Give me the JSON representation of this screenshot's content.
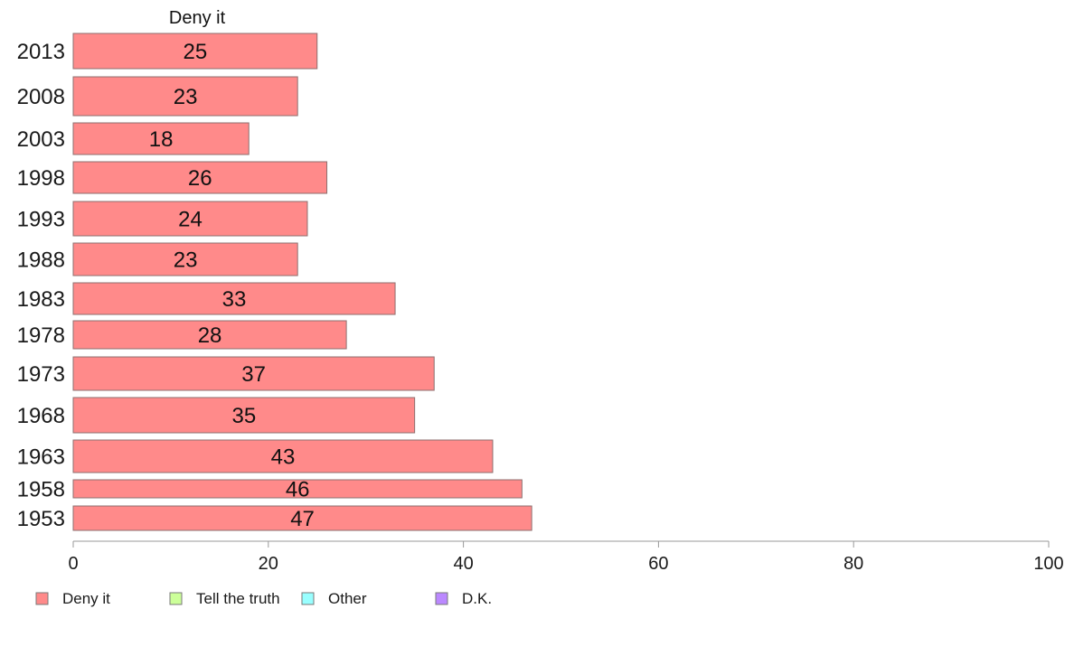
{
  "chart_data": {
    "type": "bar",
    "orientation": "horizontal",
    "column_title": "Deny it",
    "categories": [
      "2013",
      "2008",
      "2003",
      "1998",
      "1993",
      "1988",
      "1983",
      "1978",
      "1973",
      "1968",
      "1963",
      "1958",
      "1953"
    ],
    "series": [
      {
        "name": "Deny it",
        "color": "#ff8a8a",
        "values": [
          25,
          23,
          18,
          26,
          24,
          23,
          33,
          28,
          37,
          35,
          43,
          46,
          47
        ],
        "labels": [
          "25",
          "23",
          "18",
          "26",
          "24",
          "23",
          "33",
          "28",
          "37",
          "35",
          "43",
          "46",
          "47"
        ]
      }
    ],
    "xlim": [
      0,
      100
    ],
    "xticks": [
      "0",
      "20",
      "40",
      "60",
      "80",
      "100"
    ],
    "grid": false,
    "legend": {
      "position": "bottom-left",
      "items": [
        {
          "label": "Deny it",
          "color": "#ff8a8a"
        },
        {
          "label": "Tell the truth",
          "color": "#ccff99"
        },
        {
          "label": "Other",
          "color": "#99ffff"
        },
        {
          "label": "D.K.",
          "color": "#bb88ff"
        }
      ]
    }
  }
}
